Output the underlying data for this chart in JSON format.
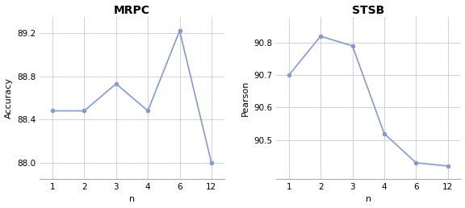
{
  "mrpc": {
    "title": "MRPC",
    "x_labels": [
      "1",
      "2",
      "3",
      "4",
      "6",
      "12"
    ],
    "y": [
      88.48,
      88.48,
      88.73,
      88.48,
      89.22,
      88.0
    ],
    "ylabel": "Accuracy",
    "xlabel": "n",
    "ylim": [
      87.85,
      89.35
    ],
    "yticks": [
      88.0,
      88.4,
      88.8,
      89.2
    ],
    "ytick_labels": [
      "88.0",
      "88.4",
      "88.8",
      "89.2"
    ]
  },
  "stsb": {
    "title": "STSB",
    "x_labels": [
      "1",
      "2",
      "3",
      "4",
      "6",
      "12"
    ],
    "y": [
      90.7,
      90.82,
      90.79,
      90.52,
      90.43,
      90.42
    ],
    "ylabel": "Pearson",
    "xlabel": "n",
    "ylim": [
      90.38,
      90.88
    ],
    "yticks": [
      90.5,
      90.6,
      90.7,
      90.8
    ],
    "ytick_labels": [
      "90.5",
      "90.6",
      "90.7",
      "90.8"
    ]
  },
  "line_color": "#8899cc",
  "marker": "o",
  "markersize": 3,
  "linewidth": 1.2,
  "grid_color": "#cccccc",
  "bg_color": "#ffffff",
  "title_fontsize": 10,
  "label_fontsize": 8,
  "tick_fontsize": 7.5
}
